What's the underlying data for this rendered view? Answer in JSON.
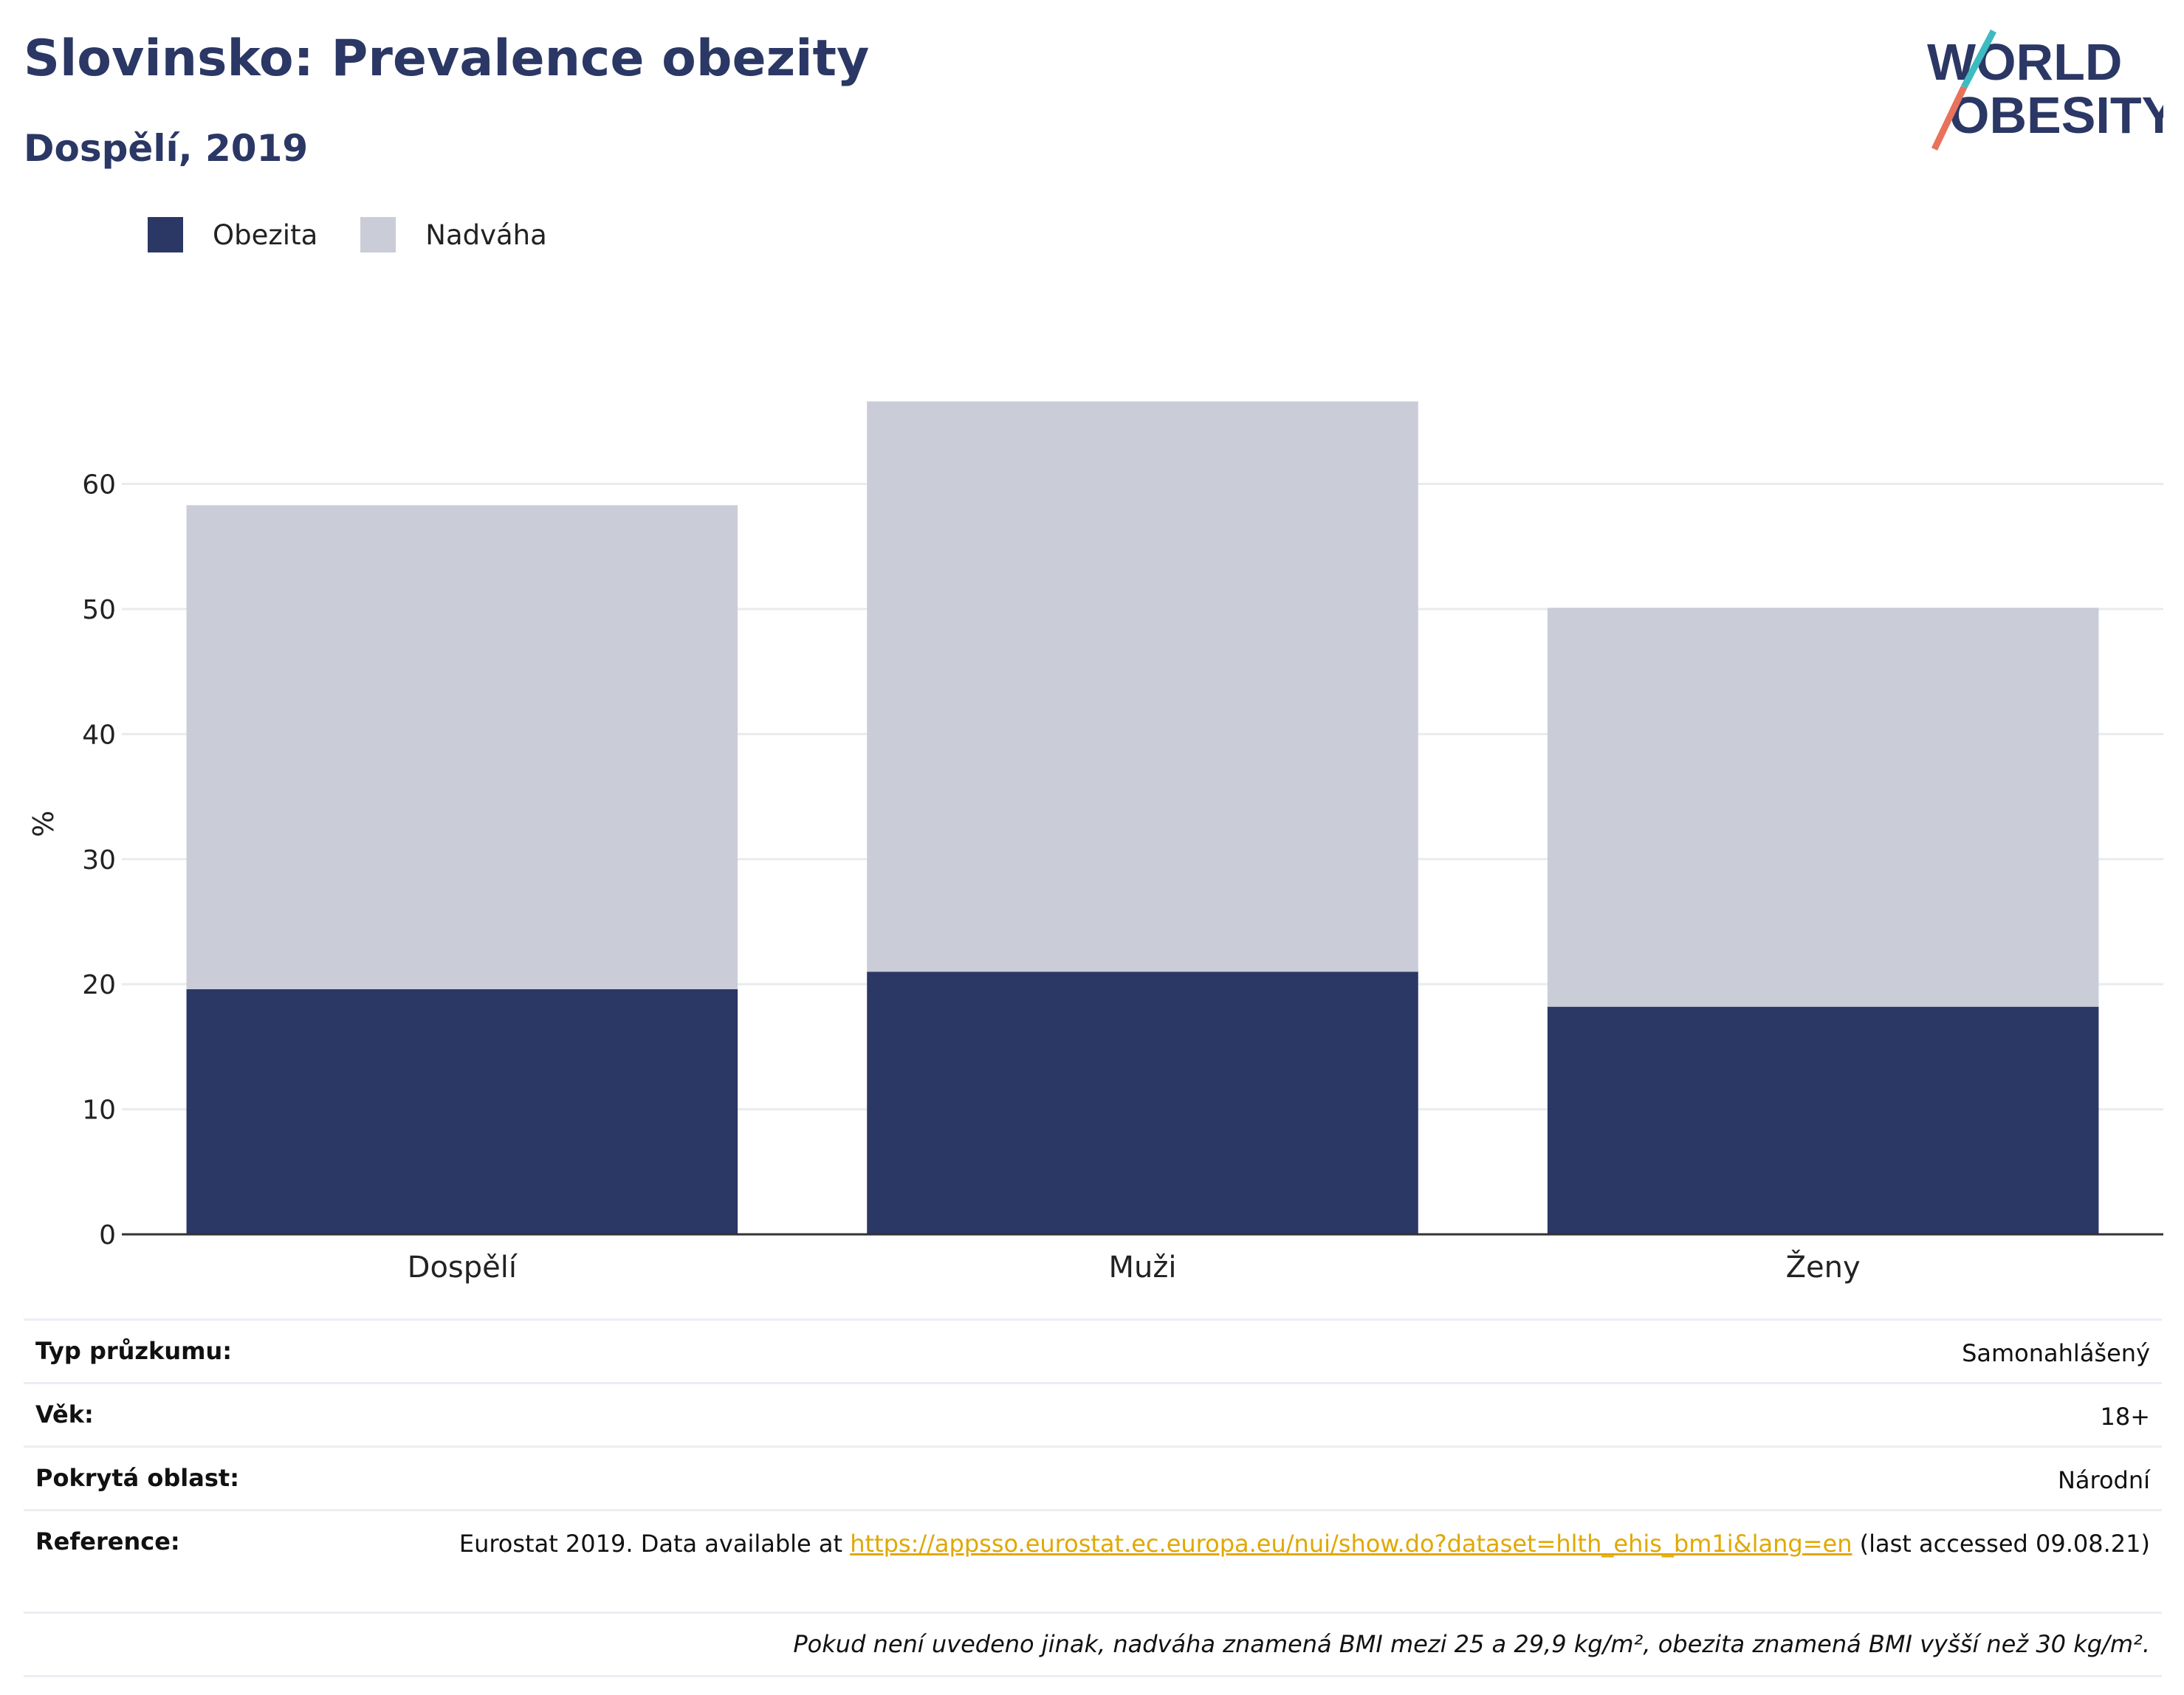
{
  "title": "Slovinsko: Prevalence obezity",
  "subtitle": "Dospělí, 2019",
  "logo": {
    "line1": "WORLD",
    "line2": "OBESITY"
  },
  "colors": {
    "obesity": "#2b3764",
    "overweight": "#cacdd8",
    "title": "#2b3764",
    "link": "#e0a800",
    "logo_teal": "#3dbbc0",
    "logo_coral": "#e8725c"
  },
  "chart_data": {
    "type": "bar",
    "stacked": true,
    "categories": [
      "Dospělí",
      "Muži",
      "Ženy"
    ],
    "series": [
      {
        "name": "Obezita",
        "values": [
          19.6,
          21.0,
          18.2
        ]
      },
      {
        "name": "Nadváha",
        "values": [
          38.7,
          45.6,
          31.9
        ]
      }
    ],
    "ylabel": "%",
    "ylim": [
      0,
      68
    ],
    "yticks": [
      0,
      10,
      20,
      30,
      40,
      50,
      60
    ],
    "grid": true,
    "legend_position": "top-left"
  },
  "info": {
    "survey_type_label": "Typ průzkumu:",
    "survey_type_value": "Samonahlášený",
    "age_label": "Věk:",
    "age_value": "18+",
    "area_label": "Pokrytá oblast:",
    "area_value": "Národní",
    "reference_label": "Reference:",
    "reference_prefix": "Eurostat 2019. Data available at",
    "reference_link": "https://appsso.eurostat.ec.europa.eu/nui/show.do?dataset=hlth_ehis_bm1i&lang=en",
    "reference_suffix": "(last accessed 09.08.21)",
    "footnote": "Pokud není uvedeno jinak, nadváha znamená BMI mezi 25 a 29,9 kg/m², obezita znamená BMI vyšší než 30 kg/m²."
  }
}
